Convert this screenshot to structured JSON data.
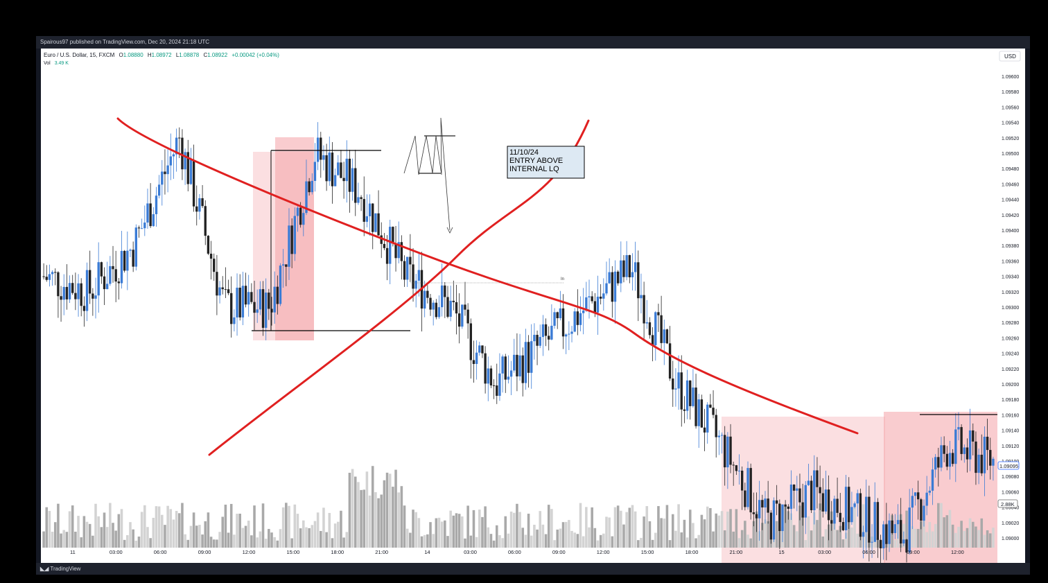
{
  "header": {
    "publisher": "Spairous97 published on TradingView.com, Dec 20, 2024 21:18 UTC"
  },
  "legend": {
    "symbol": "Euro / U.S. Dollar, 15, FXCM",
    "o_label": "O",
    "o": "1.08880",
    "h_label": "H",
    "h": "1.08972",
    "l_label": "L",
    "l": "1.08878",
    "c_label": "C",
    "c": "1.08922",
    "change": "+0.00042 (+0.04%)",
    "vol_label": "Vol",
    "vol": "3.49 K"
  },
  "price_axis": {
    "currency": "USD",
    "labels": [
      "1.09600",
      "1.09580",
      "1.09560",
      "1.09540",
      "1.09520",
      "1.09500",
      "1.09480",
      "1.09460",
      "1.09440",
      "1.09420",
      "1.09400",
      "1.09380",
      "1.09360",
      "1.09340",
      "1.09320",
      "1.09300",
      "1.09280",
      "1.09260",
      "1.09240",
      "1.09220",
      "1.09200",
      "1.09180",
      "1.09160",
      "1.09140",
      "1.09120",
      "1.09100",
      "1.09080",
      "1.09060",
      "1.09040",
      "1.09020",
      "1.09000"
    ],
    "last_price": "1.09095",
    "vol_badge": "2.88K"
  },
  "time_axis": {
    "labels": [
      "11",
      "03:00",
      "06:00",
      "09:00",
      "12:00",
      "15:00",
      "18:00",
      "21:00",
      "14",
      "03:00",
      "06:00",
      "09:00",
      "12:00",
      "15:00",
      "18:00",
      "21:00",
      "15",
      "03:00",
      "06:00",
      "09:00",
      "12:00"
    ]
  },
  "annotation": {
    "line1": "11/10/24",
    "line2": "ENTRY ABOVE",
    "line3": "INTERNAL LQ",
    "small_label": "In"
  },
  "footer": {
    "brand": "TradingView"
  },
  "colors": {
    "bull": "#3a7bd5",
    "bear": "#222222",
    "vol_bull": "#d3d3d3",
    "vol_bear": "#a9a9a9",
    "zone": "#f4a3a8",
    "drawing": "#e02020",
    "label_bg": "#dde9f3"
  },
  "chart_data": {
    "type": "candlestick",
    "symbol": "EURUSD",
    "timeframe": "15",
    "ylim": [
      1.0899,
      1.0962
    ],
    "series": [
      {
        "name": "Vol",
        "values": []
      }
    ],
    "price_path_approx": [
      {
        "x": "11 00:00",
        "y": 1.0934
      },
      {
        "x": "11 04:00",
        "y": 1.0932
      },
      {
        "x": "11 07:00",
        "y": 1.0938
      },
      {
        "x": "11 09:00",
        "y": 1.0952
      },
      {
        "x": "11 12:00",
        "y": 1.093
      },
      {
        "x": "11 13:30",
        "y": 1.093
      },
      {
        "x": "11 15:00",
        "y": 1.095
      },
      {
        "x": "11 18:00",
        "y": 1.0945
      },
      {
        "x": "11 21:00",
        "y": 1.0934
      },
      {
        "x": "14 00:00",
        "y": 1.093
      },
      {
        "x": "14 03:00",
        "y": 1.092
      },
      {
        "x": "14 06:00",
        "y": 1.0925
      },
      {
        "x": "14 09:00",
        "y": 1.093
      },
      {
        "x": "14 10:00",
        "y": 1.0935
      },
      {
        "x": "14 12:00",
        "y": 1.092
      },
      {
        "x": "14 15:00",
        "y": 1.0912
      },
      {
        "x": "14 18:00",
        "y": 1.0902
      },
      {
        "x": "14 21:00",
        "y": 1.0906
      },
      {
        "x": "15 03:00",
        "y": 1.0903
      },
      {
        "x": "15 06:00",
        "y": 1.09
      },
      {
        "x": "15 09:00",
        "y": 1.0912
      },
      {
        "x": "15 12:00",
        "y": 1.091
      }
    ]
  }
}
